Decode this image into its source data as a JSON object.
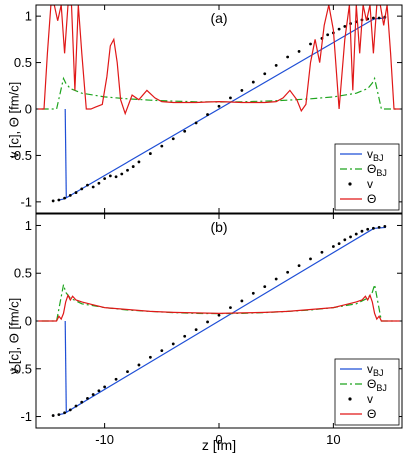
{
  "colors": {
    "v_bj": "#1f4fd6",
    "theta_bj": "#1fa51f",
    "v": "#000000",
    "theta": "#e01818"
  },
  "chart_data": [
    {
      "type": "line",
      "panel_label": "(a)",
      "ylabel": "v [c],  Θ [fm/c]",
      "xlabel": "",
      "xlim": [
        -16,
        16
      ],
      "ylim": [
        -1.12,
        1.12
      ],
      "xticks": [
        -10,
        0,
        10
      ],
      "xticklabels": [
        "",
        "",
        ""
      ],
      "yticks": [
        -1,
        -0.5,
        0,
        0.5,
        1
      ],
      "yticklabels": [
        "-1",
        "-0.5",
        "0",
        "0.5",
        "1"
      ],
      "grid": false,
      "legend_position": "bottom-right",
      "series": [
        {
          "name": "v_BJ",
          "name_main": "v",
          "name_sub": "BJ",
          "style": "solid",
          "color_key": "v_bj",
          "x": [
            -14,
            -13.6,
            -13.4,
            13.4,
            13.6,
            14.6
          ],
          "y": [
            -0.98,
            -0.97,
            -0.96,
            0.96,
            0.97,
            0.98
          ]
        },
        {
          "name": "v_BJ_shock",
          "legend": false,
          "style": "solid",
          "color_key": "v_bj",
          "x": [
            -13.45,
            -13.45,
            -13.35,
            -13.35
          ],
          "y": [
            0.0,
            0.0,
            -0.96,
            -0.96
          ]
        },
        {
          "name": "Θ_BJ",
          "name_main": "Θ",
          "name_sub": "BJ",
          "style": "dashdot",
          "color_key": "theta_bj",
          "x": [
            -15.5,
            -14.2,
            -13.6,
            -13.4,
            -13,
            -12,
            -10,
            -8,
            -6,
            -4,
            -2,
            0,
            2,
            4,
            6,
            8,
            10,
            12,
            13,
            13.4,
            13.6,
            14.2,
            15.5
          ],
          "y": [
            0,
            0,
            0.33,
            0.28,
            0.22,
            0.17,
            0.13,
            0.11,
            0.095,
            0.085,
            0.078,
            0.075,
            0.078,
            0.085,
            0.095,
            0.11,
            0.13,
            0.17,
            0.22,
            0.28,
            0.33,
            0,
            0
          ]
        },
        {
          "name": "v",
          "style": "dots",
          "color_key": "v",
          "x": [
            -14.5,
            -14,
            -13.5,
            -13,
            -12.5,
            -12,
            -11.5,
            -11,
            -10.5,
            -10,
            -9.5,
            -9,
            -8.5,
            -8,
            -7.5,
            -7,
            -6,
            -5,
            -4,
            -3,
            -2,
            -1,
            0,
            1,
            2,
            3,
            4,
            5,
            6,
            7,
            8,
            9,
            9.5,
            10,
            10.5,
            11,
            11.5,
            12,
            12.5,
            13,
            13.5,
            14,
            14.5
          ],
          "y": [
            -0.99,
            -0.98,
            -0.96,
            -0.93,
            -0.9,
            -0.86,
            -0.82,
            -0.84,
            -0.8,
            -0.75,
            -0.72,
            -0.73,
            -0.7,
            -0.66,
            -0.62,
            -0.57,
            -0.48,
            -0.4,
            -0.32,
            -0.24,
            -0.15,
            -0.06,
            0.03,
            0.12,
            0.2,
            0.29,
            0.38,
            0.47,
            0.56,
            0.62,
            0.7,
            0.76,
            0.8,
            0.82,
            0.86,
            0.89,
            0.92,
            0.94,
            0.96,
            0.97,
            0.98,
            0.98,
            0.99
          ]
        },
        {
          "name": "Θ",
          "style": "solid",
          "color_key": "theta",
          "x": [
            -15.8,
            -15.3,
            -15,
            -14.7,
            -14.4,
            -14.1,
            -13.8,
            -13.5,
            -13.2,
            -12.9,
            -12.6,
            -12.3,
            -12,
            -11.6,
            -11.2,
            -10.8,
            -10.2,
            -9.8,
            -9.5,
            -9.2,
            -8.9,
            -8.6,
            -8.2,
            -7.6,
            -7,
            -6.3,
            -5.6,
            -5,
            -4,
            -3,
            -2,
            -1,
            0,
            1,
            2,
            3,
            4,
            5,
            5.6,
            6.2,
            6.8,
            7.2,
            7.6,
            8,
            8.4,
            8.8,
            9.2,
            9.6,
            10,
            10.5,
            11,
            11.4,
            11.7,
            12,
            12.3,
            12.6,
            12.9,
            13.2,
            13.5,
            13.8,
            14.1,
            14.4,
            14.7,
            15,
            15.3,
            15.8
          ],
          "y": [
            0,
            0,
            0.6,
            1.12,
            1.12,
            0.95,
            1.12,
            0.6,
            1.12,
            1.12,
            0.2,
            1.12,
            0.6,
            0.0,
            0.0,
            0.02,
            0.05,
            0.35,
            0.68,
            0.75,
            0.5,
            0.1,
            -0.05,
            0.15,
            0.1,
            0.2,
            0.12,
            0.08,
            0.07,
            0.07,
            0.07,
            0.075,
            0.08,
            0.075,
            0.07,
            0.07,
            0.07,
            0.08,
            0.12,
            0.2,
            0.1,
            -0.02,
            0.05,
            0.5,
            0.75,
            0.5,
            0.9,
            1.12,
            0.85,
            0.0,
            0.75,
            1.12,
            0.2,
            1.12,
            0.6,
            1.12,
            0.95,
            1.12,
            0.6,
            1.12,
            1.12,
            0.9,
            1.12,
            0.6,
            0,
            0
          ]
        }
      ]
    },
    {
      "type": "line",
      "panel_label": "(b)",
      "ylabel": "v [c],  Θ [fm/c]",
      "xlabel": "z [fm]",
      "xlim": [
        -16,
        16
      ],
      "ylim": [
        -1.12,
        1.12
      ],
      "xticks": [
        -10,
        0,
        10
      ],
      "xticklabels": [
        "-10",
        "0",
        "10"
      ],
      "yticks": [
        -1,
        -0.5,
        0,
        0.5,
        1
      ],
      "yticklabels": [
        "-1",
        "-0.5",
        "0",
        "0.5",
        "1"
      ],
      "grid": false,
      "legend_position": "bottom-right",
      "series": [
        {
          "name": "v_BJ",
          "name_main": "v",
          "name_sub": "BJ",
          "style": "solid",
          "color_key": "v_bj",
          "x": [
            -14,
            -13.6,
            -13.4,
            13.4,
            13.6,
            14.6
          ],
          "y": [
            -0.98,
            -0.97,
            -0.96,
            0.96,
            0.97,
            0.98
          ]
        },
        {
          "name": "v_BJ_shock",
          "legend": false,
          "style": "solid",
          "color_key": "v_bj",
          "x": [
            -13.45,
            -13.45,
            -13.35,
            -13.35
          ],
          "y": [
            0.0,
            0.0,
            -0.96,
            -0.96
          ]
        },
        {
          "name": "Θ_BJ",
          "name_main": "Θ",
          "name_sub": "BJ",
          "style": "dashdot",
          "color_key": "theta_bj",
          "x": [
            -15.5,
            -14.2,
            -13.6,
            -13.4,
            -13,
            -12,
            -10,
            -8,
            -6,
            -4,
            -2,
            0,
            2,
            4,
            6,
            8,
            10,
            12,
            13,
            13.4,
            13.6,
            14.2,
            15.5
          ],
          "y": [
            0,
            0,
            0.38,
            0.3,
            0.24,
            0.18,
            0.14,
            0.115,
            0.1,
            0.088,
            0.08,
            0.077,
            0.08,
            0.088,
            0.1,
            0.115,
            0.14,
            0.18,
            0.24,
            0.3,
            0.38,
            0,
            0
          ]
        },
        {
          "name": "v",
          "style": "dots",
          "color_key": "v",
          "x": [
            -14.5,
            -14,
            -13.5,
            -13,
            -12.5,
            -12,
            -11.5,
            -11,
            -10.5,
            -10,
            -9,
            -8,
            -7,
            -6,
            -5,
            -4,
            -3,
            -2,
            -1,
            0,
            1,
            2,
            3,
            4,
            5,
            6,
            7,
            8,
            9,
            10,
            10.5,
            11,
            11.5,
            12,
            12.5,
            13,
            13.5,
            14,
            14.5
          ],
          "y": [
            -0.99,
            -0.98,
            -0.96,
            -0.93,
            -0.89,
            -0.85,
            -0.81,
            -0.77,
            -0.73,
            -0.69,
            -0.61,
            -0.53,
            -0.46,
            -0.38,
            -0.31,
            -0.24,
            -0.16,
            -0.09,
            -0.01,
            0.06,
            0.14,
            0.21,
            0.29,
            0.36,
            0.44,
            0.51,
            0.58,
            0.65,
            0.72,
            0.78,
            0.81,
            0.85,
            0.88,
            0.91,
            0.94,
            0.96,
            0.97,
            0.98,
            0.99
          ]
        },
        {
          "name": "Θ",
          "style": "solid",
          "color_key": "theta",
          "x": [
            -15.8,
            -14.2,
            -14,
            -13.8,
            -13.6,
            -13.4,
            -13.2,
            -13,
            -12.8,
            -12.5,
            -12,
            -11,
            -10,
            -8,
            -6,
            -4,
            -2,
            0,
            2,
            4,
            6,
            8,
            10,
            11,
            12,
            12.5,
            12.8,
            13,
            13.2,
            13.4,
            13.6,
            13.8,
            14,
            14.2,
            15.8
          ],
          "y": [
            0,
            0,
            0.05,
            0.02,
            0.08,
            0.2,
            0.27,
            0.22,
            0.26,
            0.22,
            0.2,
            0.17,
            0.14,
            0.12,
            0.1,
            0.09,
            0.085,
            0.08,
            0.085,
            0.09,
            0.1,
            0.12,
            0.14,
            0.17,
            0.2,
            0.22,
            0.26,
            0.22,
            0.27,
            0.2,
            0.08,
            0.02,
            0.05,
            0,
            0
          ]
        }
      ]
    }
  ]
}
